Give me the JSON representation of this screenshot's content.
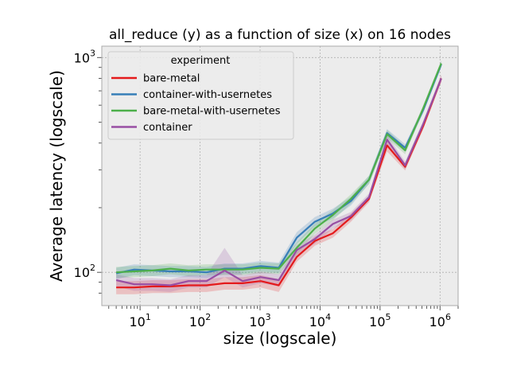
{
  "chart_data": {
    "type": "line",
    "title": "all_reduce (y) as a function of size (x) on 16 nodes",
    "xlabel": "size (logscale)",
    "ylabel": "Average latency (logscale)",
    "xscale": "log",
    "yscale": "log",
    "xlim": [
      2.3,
      2000000
    ],
    "ylim": [
      70,
      1130
    ],
    "x_ticks": [
      {
        "value": 10,
        "base": "10",
        "exp": "1"
      },
      {
        "value": 100,
        "base": "10",
        "exp": "2"
      },
      {
        "value": 1000,
        "base": "10",
        "exp": "3"
      },
      {
        "value": 10000,
        "base": "10",
        "exp": "4"
      },
      {
        "value": 100000,
        "base": "10",
        "exp": "5"
      },
      {
        "value": 1000000,
        "base": "10",
        "exp": "6"
      }
    ],
    "y_ticks": [
      {
        "value": 100,
        "base": "10",
        "exp": "2"
      },
      {
        "value": 1000,
        "base": "10",
        "exp": "3"
      }
    ],
    "grid": true,
    "legend": {
      "title": "experiment",
      "placement": "upper-left"
    },
    "x": [
      4,
      8,
      16,
      32,
      64,
      128,
      256,
      512,
      1024,
      2048,
      4096,
      8192,
      16384,
      32768,
      65536,
      131072,
      262144,
      524288,
      1048576
    ],
    "series": [
      {
        "name": "bare-metal",
        "color": "#e41a1c",
        "values": [
          85,
          85,
          86,
          86,
          87,
          87,
          89,
          89,
          91,
          87,
          118,
          140,
          152,
          180,
          220,
          390,
          310,
          480,
          800
        ],
        "lower": [
          79,
          79,
          80,
          80,
          81,
          81,
          83,
          83,
          85,
          81,
          112,
          133,
          145,
          172,
          212,
          365,
          298,
          462,
          770
        ],
        "upper": [
          91,
          91,
          92,
          92,
          93,
          93,
          95,
          95,
          97,
          93,
          124,
          147,
          159,
          188,
          228,
          415,
          322,
          498,
          830
        ]
      },
      {
        "name": "container-with-usernetes",
        "color": "#377eb8",
        "values": [
          99,
          103,
          102,
          101,
          101,
          100,
          104,
          104,
          107,
          105,
          145,
          172,
          188,
          215,
          270,
          445,
          380,
          570,
          930
        ],
        "lower": [
          93,
          97,
          96,
          95,
          95,
          94,
          98,
          98,
          101,
          99,
          136,
          163,
          178,
          205,
          258,
          425,
          365,
          550,
          900
        ],
        "upper": [
          105,
          109,
          108,
          107,
          107,
          106,
          110,
          110,
          113,
          111,
          154,
          181,
          198,
          225,
          282,
          465,
          395,
          590,
          960
        ]
      },
      {
        "name": "bare-metal-with-usernetes",
        "color": "#4daf4a",
        "values": [
          100,
          101,
          102,
          104,
          102,
          103,
          103,
          103,
          105,
          104,
          130,
          160,
          185,
          220,
          270,
          440,
          370,
          580,
          940
        ],
        "lower": [
          94,
          95,
          96,
          98,
          96,
          97,
          97,
          97,
          99,
          98,
          122,
          151,
          175,
          209,
          258,
          420,
          355,
          560,
          910
        ],
        "upper": [
          106,
          107,
          108,
          110,
          108,
          109,
          109,
          109,
          111,
          110,
          138,
          169,
          195,
          231,
          282,
          460,
          385,
          600,
          970
        ]
      },
      {
        "name": "container",
        "color": "#984ea3",
        "values": [
          92,
          88,
          88,
          87,
          91,
          91,
          102,
          91,
          95,
          92,
          127,
          143,
          168,
          183,
          224,
          415,
          315,
          490,
          800
        ],
        "lower": [
          86,
          82,
          82,
          81,
          85,
          85,
          95,
          85,
          89,
          86,
          120,
          136,
          160,
          175,
          215,
          395,
          302,
          472,
          770
        ],
        "upper": [
          98,
          94,
          94,
          93,
          97,
          97,
          130,
          97,
          101,
          98,
          134,
          150,
          176,
          191,
          233,
          435,
          328,
          508,
          830
        ]
      }
    ]
  }
}
